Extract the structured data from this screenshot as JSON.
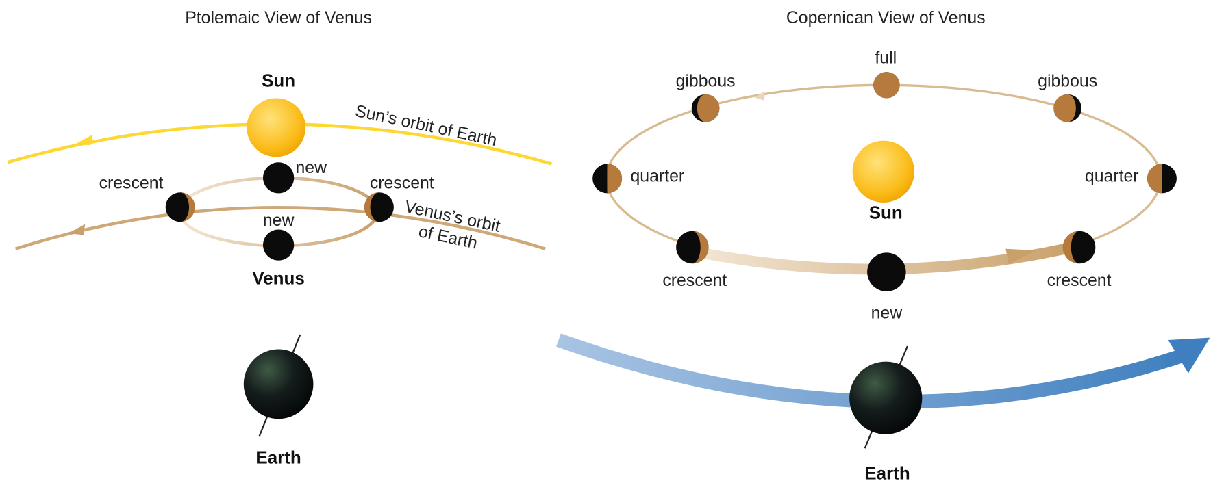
{
  "left": {
    "title": "Ptolemaic View of Venus",
    "sun": "Sun",
    "sun_orbit": "Sun’s orbit of Earth",
    "venus_orbit": [
      "Venus’s orbit",
      "of Earth"
    ],
    "venus": "Venus",
    "earth": "Earth",
    "phases": [
      "crescent",
      "new",
      "crescent",
      "new"
    ]
  },
  "right": {
    "title": "Copernican View of Venus",
    "sun": "Sun",
    "earth": "Earth",
    "phases": [
      "full",
      "gibbous",
      "gibbous",
      "quarter",
      "quarter",
      "crescent",
      "crescent",
      "new"
    ]
  }
}
